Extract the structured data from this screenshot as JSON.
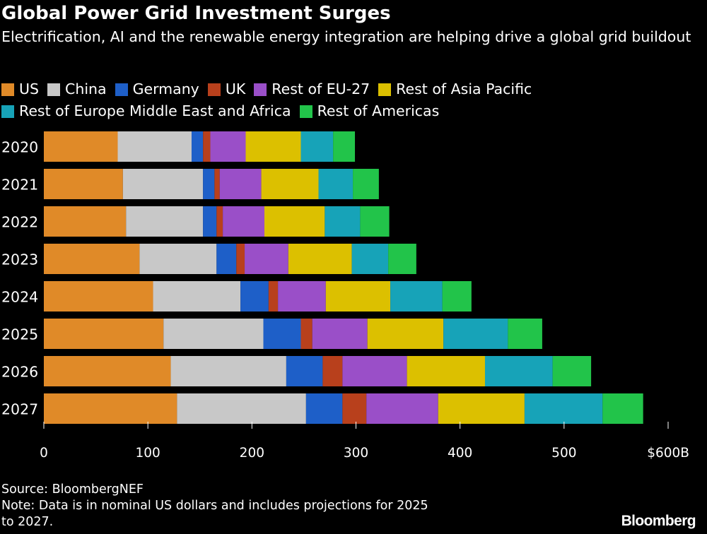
{
  "title": "Global Power Grid Investment Surges",
  "subtitle": "Electrification, AI and the renewable energy integration are helping drive a global grid buildout",
  "source": "Source: BloombergNEF",
  "note_line1": "Note: Data is in nominal US dollars and includes projections for 2025",
  "note_line2": "to 2027.",
  "logo": "Bloomberg",
  "chart_data": {
    "type": "bar",
    "orientation": "horizontal",
    "stacked": true,
    "categories": [
      "2020",
      "2021",
      "2022",
      "2023",
      "2024",
      "2025",
      "2026",
      "2027"
    ],
    "series": [
      {
        "name": "US",
        "color": "#e08a28",
        "values": [
          71,
          76,
          79,
          92,
          105,
          115,
          122,
          128
        ]
      },
      {
        "name": "China",
        "color": "#c8c8c8",
        "values": [
          71,
          77,
          74,
          74,
          84,
          96,
          111,
          124
        ]
      },
      {
        "name": "Germany",
        "color": "#1e5fc8",
        "values": [
          11,
          11,
          13,
          19,
          27,
          36,
          35,
          35
        ]
      },
      {
        "name": "UK",
        "color": "#b8401c",
        "values": [
          7,
          5,
          6,
          8,
          9,
          11,
          19,
          23
        ]
      },
      {
        "name": "Rest of EU-27",
        "color": "#9a4fc8",
        "values": [
          34,
          40,
          40,
          42,
          46,
          53,
          62,
          69
        ]
      },
      {
        "name": "Rest of Asia Pacific",
        "color": "#dcc000",
        "values": [
          53,
          55,
          58,
          61,
          62,
          73,
          75,
          83
        ]
      },
      {
        "name": "Rest of Europe Middle East and Africa",
        "color": "#17a3b8",
        "values": [
          31,
          33,
          34,
          35,
          50,
          62,
          65,
          75
        ]
      },
      {
        "name": "Rest of Americas",
        "color": "#22c44a",
        "values": [
          21,
          25,
          28,
          27,
          28,
          33,
          37,
          39
        ]
      }
    ],
    "x_ticks": [
      "0",
      "100",
      "200",
      "300",
      "400",
      "500",
      "$600B"
    ],
    "xlim": [
      0,
      600
    ],
    "legend_position": "top",
    "grid": false
  }
}
